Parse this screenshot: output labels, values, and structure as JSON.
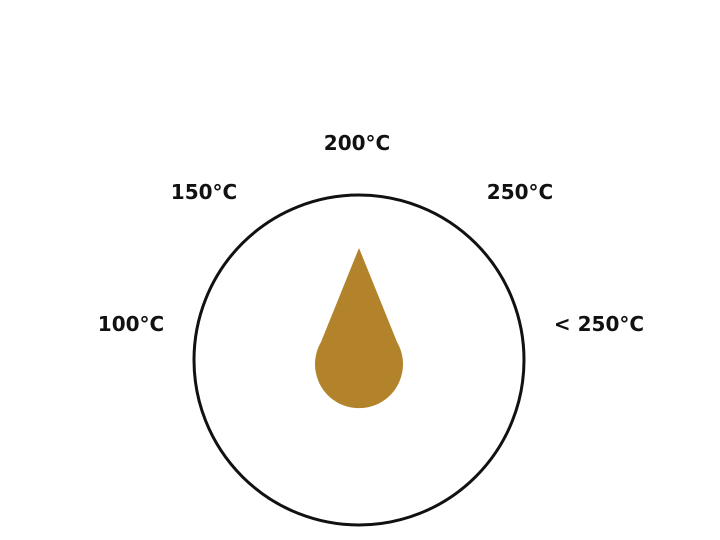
{
  "dial": {
    "labels": [
      "100°C",
      "150°C",
      "200°C",
      "250°C",
      "< 250°C"
    ]
  },
  "colors": {
    "drop": "#b2832a",
    "ring": "#111111",
    "text": "#111111",
    "background": "#ffffff"
  },
  "icons": {
    "center": "oil-drop-icon"
  }
}
